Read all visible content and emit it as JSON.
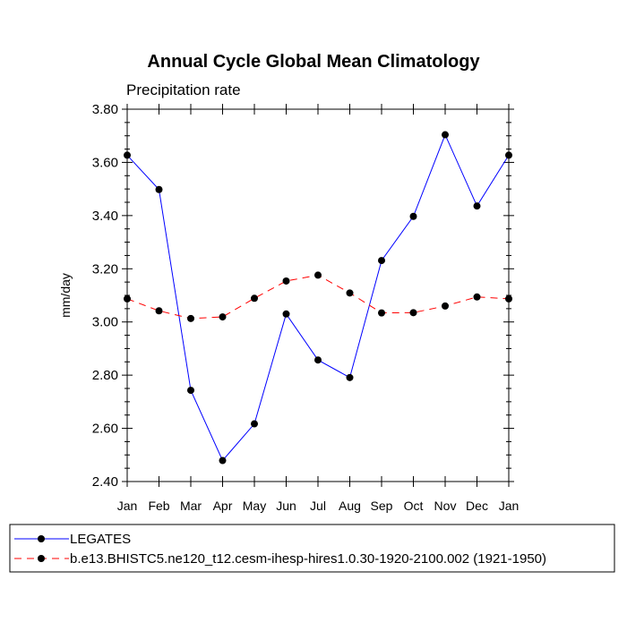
{
  "chart_data": {
    "type": "line",
    "title": "Annual Cycle Global Mean Climatology",
    "subtitle": "Precipitation rate",
    "ylabel": "mm/day",
    "xlabel": "",
    "categories": [
      "Jan",
      "Feb",
      "Mar",
      "Apr",
      "May",
      "Jun",
      "Jul",
      "Aug",
      "Sep",
      "Oct",
      "Nov",
      "Dec",
      "Jan"
    ],
    "ylim": [
      2.4,
      3.8
    ],
    "yticks": [
      "2.40",
      "2.60",
      "2.80",
      "3.00",
      "3.20",
      "3.40",
      "3.60",
      "3.80"
    ],
    "grid": false,
    "legend_position": "bottom",
    "series": [
      {
        "name": "LEGATES",
        "color": "#0000ff",
        "dash": "solid",
        "values": [
          3.627,
          3.498,
          2.743,
          2.479,
          2.617,
          3.03,
          2.857,
          2.791,
          3.231,
          3.397,
          3.704,
          3.436,
          3.627
        ]
      },
      {
        "name": "b.e13.BHISTC5.ne120_t12.cesm-ihesp-hires1.0.30-1920-2100.002 (1921-1950)",
        "color": "#ff0000",
        "dash": "dashed",
        "values": [
          3.087,
          3.042,
          3.013,
          3.019,
          3.089,
          3.154,
          3.176,
          3.109,
          3.034,
          3.035,
          3.06,
          3.094,
          3.087
        ]
      }
    ]
  }
}
